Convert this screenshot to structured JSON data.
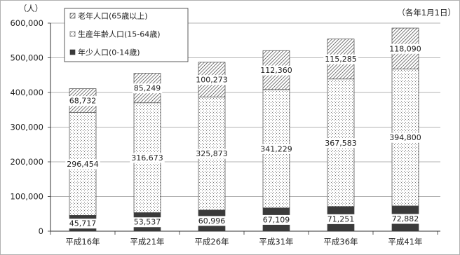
{
  "chart_data": {
    "type": "bar",
    "stacked": true,
    "ylabel": "（人）",
    "annotation": "（各年1月1日）",
    "categories": [
      "平成16年",
      "平成21年",
      "平成26年",
      "平成31年",
      "平成36年",
      "平成41年"
    ],
    "series": [
      {
        "name": "年少人口(0-14歳)",
        "values": [
          45717,
          53537,
          60996,
          67109,
          71251,
          72882
        ],
        "color": "#3a3a3a",
        "fill": "solid"
      },
      {
        "name": "生産年齢人口(15-64歳)",
        "values": [
          296454,
          316673,
          325873,
          341229,
          367583,
          394800
        ],
        "color": "#7a7a7a",
        "fill": "dots"
      },
      {
        "name": "老年人口(65歳以上)",
        "values": [
          68732,
          85249,
          100273,
          112360,
          115285,
          118090
        ],
        "color": "#333333",
        "fill": "hatch"
      }
    ],
    "ylim": [
      0,
      600000
    ],
    "yticks": [
      0,
      100000,
      200000,
      300000,
      400000,
      500000,
      600000
    ],
    "grid": true,
    "legend_position": "top-left",
    "data_labels": true
  }
}
